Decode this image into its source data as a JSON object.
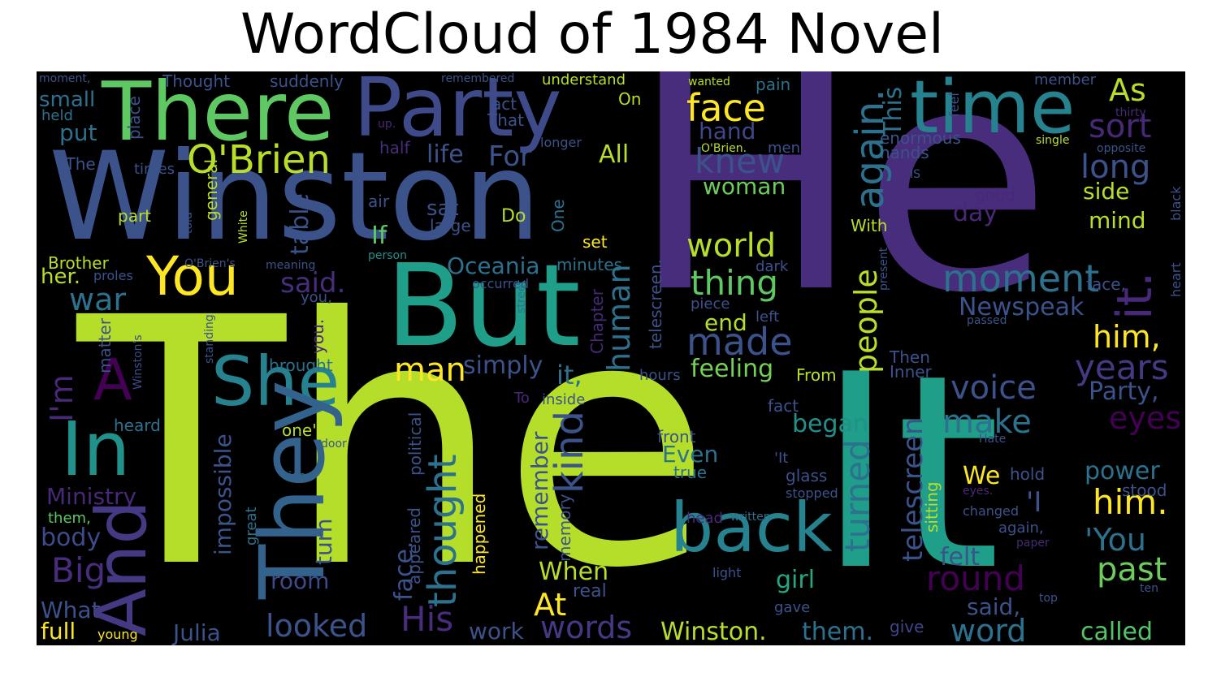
{
  "title": "WordCloud of 1984 Novel",
  "colors": {
    "background": "#000000",
    "title": "#000000"
  },
  "words": [
    {
      "text": "The",
      "color": "#b5de2b"
    },
    {
      "text": "He",
      "color": "#472d7b"
    },
    {
      "text": "It",
      "color": "#1f9e89"
    },
    {
      "text": "Winston",
      "color": "#3b528b"
    },
    {
      "text": "But",
      "color": "#1f9e89"
    },
    {
      "text": "Party",
      "color": "#3e4a89"
    },
    {
      "text": "There",
      "color": "#5ec962"
    },
    {
      "text": "time",
      "color": "#26828e"
    },
    {
      "text": "back",
      "color": "#26828e"
    },
    {
      "text": "She",
      "color": "#26828e"
    },
    {
      "text": "They",
      "color": "#33638d"
    },
    {
      "text": "In",
      "color": "#21918c"
    },
    {
      "text": "And",
      "color": "#443983"
    },
    {
      "text": "You",
      "color": "#fde725"
    },
    {
      "text": "O'Brien",
      "color": "#b8de29"
    },
    {
      "text": "A",
      "color": "#440154"
    },
    {
      "text": "face",
      "color": "#fde725"
    },
    {
      "text": "knew",
      "color": "#3b528b"
    },
    {
      "text": "woman",
      "color": "#6ccd5a"
    },
    {
      "text": "hand",
      "color": "#3f4788"
    },
    {
      "text": "world",
      "color": "#b5de2b"
    },
    {
      "text": "thing",
      "color": "#5ec962"
    },
    {
      "text": "made",
      "color": "#3b528b"
    },
    {
      "text": "end",
      "color": "#b5de2b"
    },
    {
      "text": "feeling",
      "color": "#75d054"
    },
    {
      "text": "moment",
      "color": "#2c728e"
    },
    {
      "text": "Newspeak",
      "color": "#3b528b"
    },
    {
      "text": "him,",
      "color": "#fde725"
    },
    {
      "text": "years",
      "color": "#443983"
    },
    {
      "text": "voice",
      "color": "#3b528b"
    },
    {
      "text": "Party,",
      "color": "#3b528b"
    },
    {
      "text": "make",
      "color": "#2c728e"
    },
    {
      "text": "eyes",
      "color": "#440154"
    },
    {
      "text": "began",
      "color": "#21918c"
    },
    {
      "text": "power",
      "color": "#2c728e"
    },
    {
      "text": "him.",
      "color": "#fde725"
    },
    {
      "text": "'You",
      "color": "#2c728e"
    },
    {
      "text": "past",
      "color": "#6ccd5a"
    },
    {
      "text": "felt",
      "color": "#3b528b"
    },
    {
      "text": "round",
      "color": "#440154"
    },
    {
      "text": "girl",
      "color": "#22a884"
    },
    {
      "text": "said,",
      "color": "#3b528b"
    },
    {
      "text": "word",
      "color": "#2c728e"
    },
    {
      "text": "called",
      "color": "#52c569"
    },
    {
      "text": "Winston.",
      "color": "#b8de29"
    },
    {
      "text": "them.",
      "color": "#2c728e"
    },
    {
      "text": "give",
      "color": "#3f4788"
    },
    {
      "text": "looked",
      "color": "#3b528b"
    },
    {
      "text": "words",
      "color": "#443983"
    },
    {
      "text": "work",
      "color": "#3b528b"
    },
    {
      "text": "His",
      "color": "#472d7b"
    },
    {
      "text": "Julia",
      "color": "#3b528b"
    },
    {
      "text": "At",
      "color": "#fde725"
    },
    {
      "text": "When",
      "color": "#b8de29"
    },
    {
      "text": "real",
      "color": "#3b528b"
    },
    {
      "text": "room",
      "color": "#3e4a89"
    },
    {
      "text": "man",
      "color": "#fde725"
    },
    {
      "text": "simply",
      "color": "#3b528b"
    },
    {
      "text": "Big",
      "color": "#472d7b"
    },
    {
      "text": "body",
      "color": "#3e4a89"
    },
    {
      "text": "What",
      "color": "#3b528b"
    },
    {
      "text": "full",
      "color": "#fde725"
    },
    {
      "text": "young",
      "color": "#fde725"
    },
    {
      "text": "Ministry",
      "color": "#482878"
    },
    {
      "text": "them,",
      "color": "#5ec962"
    },
    {
      "text": "heard",
      "color": "#2c728e"
    },
    {
      "text": "war",
      "color": "#2c728e"
    },
    {
      "text": "her.",
      "color": "#b8de29"
    },
    {
      "text": "Brother",
      "color": "#b8de29"
    },
    {
      "text": "part",
      "color": "#b8de29"
    },
    {
      "text": "'The",
      "color": "#3b528b"
    },
    {
      "text": "times",
      "color": "#3b528b"
    },
    {
      "text": "put",
      "color": "#2c728e"
    },
    {
      "text": "small",
      "color": "#2c728e"
    },
    {
      "text": "held",
      "color": "#2c728e"
    },
    {
      "text": "moment,",
      "color": "#3b528b"
    },
    {
      "text": "Thought",
      "color": "#3b528b"
    },
    {
      "text": "suddenly",
      "color": "#3b528b"
    },
    {
      "text": "remembered",
      "color": "#3b528b"
    },
    {
      "text": "understand",
      "color": "#b8de29"
    },
    {
      "text": "act",
      "color": "#3b528b"
    },
    {
      "text": "That",
      "color": "#3b528b"
    },
    {
      "text": "up.",
      "color": "#482878"
    },
    {
      "text": "On",
      "color": "#b8de29"
    },
    {
      "text": "half",
      "color": "#472d7b"
    },
    {
      "text": "longer",
      "color": "#3b528b"
    },
    {
      "text": "life",
      "color": "#3b528b"
    },
    {
      "text": "For",
      "color": "#3b528b"
    },
    {
      "text": "All",
      "color": "#b8de29"
    },
    {
      "text": "air",
      "color": "#3b528b"
    },
    {
      "text": "sat",
      "color": "#3b528b"
    },
    {
      "text": "large",
      "color": "#3b528b"
    },
    {
      "text": "Do",
      "color": "#b8de29"
    },
    {
      "text": "If",
      "color": "#5ec962"
    },
    {
      "text": "set",
      "color": "#fde725"
    },
    {
      "text": "person",
      "color": "#21918c"
    },
    {
      "text": "O'Brien's",
      "color": "#3b528b"
    },
    {
      "text": "meaning",
      "color": "#3b528b"
    },
    {
      "text": "proles",
      "color": "#3b528b"
    },
    {
      "text": "occurred",
      "color": "#3b528b"
    },
    {
      "text": "Oceania",
      "color": "#2c728e"
    },
    {
      "text": "minutes",
      "color": "#2c728e"
    },
    {
      "text": "said.",
      "color": "#472d7b"
    },
    {
      "text": "you,",
      "color": "#3b528b"
    },
    {
      "text": "brought",
      "color": "#2c728e"
    },
    {
      "text": "one's",
      "color": "#b8de29"
    },
    {
      "text": "door",
      "color": "#3b528b"
    },
    {
      "text": "idea",
      "color": "#2c728e"
    },
    {
      "text": "it,",
      "color": "#2c728e"
    },
    {
      "text": "hours",
      "color": "#3b528b"
    },
    {
      "text": "To",
      "color": "#482878"
    },
    {
      "text": "inside",
      "color": "#3b528b"
    },
    {
      "text": "front",
      "color": "#3b528b"
    },
    {
      "text": "Even",
      "color": "#2c728e"
    },
    {
      "text": "true",
      "color": "#2c728e"
    },
    {
      "text": "head",
      "color": "#482878"
    },
    {
      "text": "written",
      "color": "#2c728e"
    },
    {
      "text": "light",
      "color": "#3b528b"
    },
    {
      "text": "fact",
      "color": "#3b528b"
    },
    {
      "text": "'It",
      "color": "#3b528b"
    },
    {
      "text": "glass",
      "color": "#3b528b"
    },
    {
      "text": "stopped",
      "color": "#3b528b"
    },
    {
      "text": "gave",
      "color": "#3b528b"
    },
    {
      "text": "From",
      "color": "#b8de29"
    },
    {
      "text": "Then",
      "color": "#3b528b"
    },
    {
      "text": "Inner",
      "color": "#3b528b"
    },
    {
      "text": "We",
      "color": "#fde725"
    },
    {
      "text": "hold",
      "color": "#3b528b"
    },
    {
      "text": "Hate",
      "color": "#3b528b"
    },
    {
      "text": "eyes.",
      "color": "#482878"
    },
    {
      "text": "changed",
      "color": "#3b528b"
    },
    {
      "text": "again,",
      "color": "#3b528b"
    },
    {
      "text": "paper",
      "color": "#482878"
    },
    {
      "text": "top",
      "color": "#3b528b"
    },
    {
      "text": "ten",
      "color": "#3b528b"
    },
    {
      "text": "stood",
      "color": "#3b528b"
    },
    {
      "text": "'I",
      "color": "#3b528b"
    },
    {
      "text": "pain",
      "color": "#2c728e"
    },
    {
      "text": "wanted",
      "color": "#b8de29"
    },
    {
      "text": "member",
      "color": "#3b528b"
    },
    {
      "text": "As",
      "color": "#b8de29"
    },
    {
      "text": "sort",
      "color": "#482878"
    },
    {
      "text": "thirty",
      "color": "#482878"
    },
    {
      "text": "single",
      "color": "#b8de29"
    },
    {
      "text": "opposite",
      "color": "#3b528b"
    },
    {
      "text": "long",
      "color": "#3b528b"
    },
    {
      "text": "side",
      "color": "#b8de29"
    },
    {
      "text": "mind",
      "color": "#b8de29"
    },
    {
      "text": "enormous",
      "color": "#3b528b"
    },
    {
      "text": "hands",
      "color": "#3b528b"
    },
    {
      "text": "IS",
      "color": "#3b528b"
    },
    {
      "text": "good",
      "color": "#482878"
    },
    {
      "text": "day",
      "color": "#482878"
    },
    {
      "text": "With",
      "color": "#b8de29"
    },
    {
      "text": "dark",
      "color": "#3b528b"
    },
    {
      "text": "piece",
      "color": "#3b528b"
    },
    {
      "text": "left",
      "color": "#3b528b"
    },
    {
      "text": "face,",
      "color": "#3b528b"
    },
    {
      "text": "passed",
      "color": "#3b528b"
    },
    {
      "text": "O'Brien.",
      "color": "#b8de29"
    },
    {
      "text": "men",
      "color": "#3b528b"
    },
    {
      "text": "it.",
      "color": "#482878"
    },
    {
      "text": "again.",
      "color": "#2c728e"
    },
    {
      "text": "This",
      "color": "#2c728e"
    },
    {
      "text": "feel",
      "color": "#3b528b"
    },
    {
      "text": "people",
      "color": "#b8de29"
    },
    {
      "text": "present",
      "color": "#3b528b"
    },
    {
      "text": "heart",
      "color": "#3b528b"
    },
    {
      "text": "black",
      "color": "#3b528b"
    },
    {
      "text": "turned",
      "color": "#2c728e"
    },
    {
      "text": "telescreen",
      "color": "#3b528b"
    },
    {
      "text": "sitting",
      "color": "#b8de29"
    },
    {
      "text": "human",
      "color": "#2c728e"
    },
    {
      "text": "telescreen.",
      "color": "#3b528b"
    },
    {
      "text": "Chapter",
      "color": "#482878"
    },
    {
      "text": "kind",
      "color": "#3b528b"
    },
    {
      "text": "remember",
      "color": "#3b528b"
    },
    {
      "text": "memory",
      "color": "#3b528b"
    },
    {
      "text": "thought",
      "color": "#2c728e"
    },
    {
      "text": "happened",
      "color": "#fde725"
    },
    {
      "text": "appeared",
      "color": "#3b528b"
    },
    {
      "text": "face.",
      "color": "#3b528b"
    },
    {
      "text": "political",
      "color": "#3b528b"
    },
    {
      "text": "street",
      "color": "#2c728e"
    },
    {
      "text": "One",
      "color": "#2c728e"
    },
    {
      "text": "you.",
      "color": "#482878"
    },
    {
      "text": "White",
      "color": "#b8de29"
    },
    {
      "text": "table",
      "color": "#3b528b"
    },
    {
      "text": "general",
      "color": "#b8de29"
    },
    {
      "text": "told",
      "color": "#3b528b"
    },
    {
      "text": "place",
      "color": "#3b528b"
    },
    {
      "text": "I'm",
      "color": "#482878"
    },
    {
      "text": "matter",
      "color": "#3b528b"
    },
    {
      "text": "standing",
      "color": "#3b528b"
    },
    {
      "text": "Winston's",
      "color": "#3e4a89"
    },
    {
      "text": "impossible",
      "color": "#3b528b"
    },
    {
      "text": "great",
      "color": "#2c728e"
    },
    {
      "text": "turn",
      "color": "#3b528b"
    }
  ]
}
